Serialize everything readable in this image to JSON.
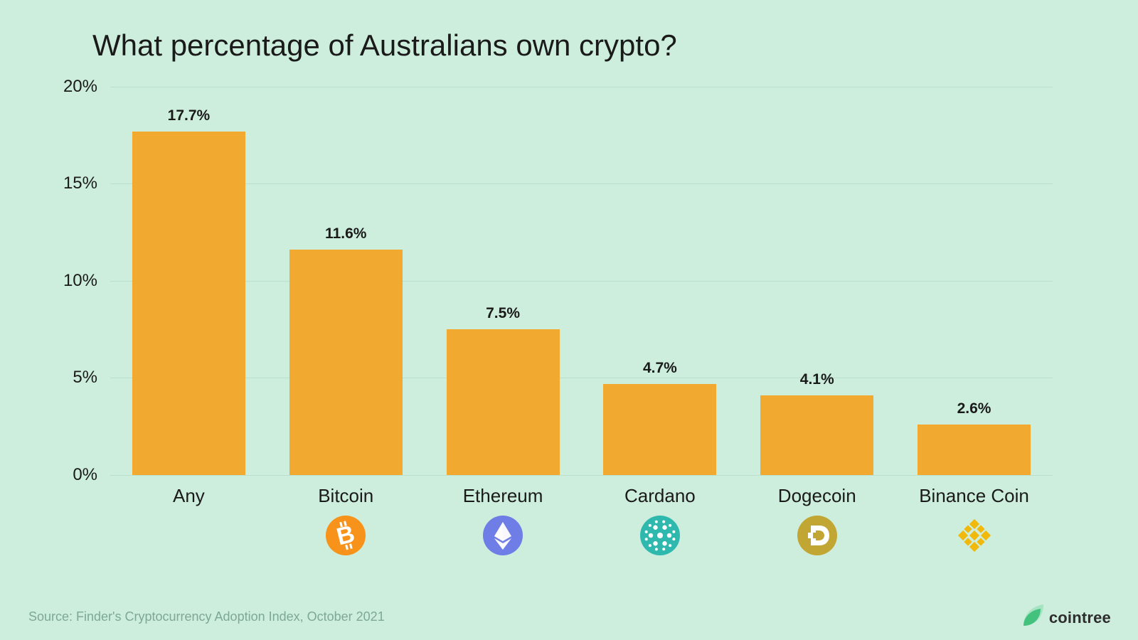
{
  "title": "What percentage of Australians own crypto?",
  "source": "Source: Finder's Cryptocurrency Adoption Index, October 2021",
  "brand": "cointree",
  "background_color": "#cdeedc",
  "grid_color": "#b9dfcd",
  "text_color": "#1a1a1a",
  "source_color": "#7da897",
  "chart": {
    "type": "bar",
    "ylim_max": 20.5,
    "yticks": [
      0,
      5,
      10,
      15,
      20
    ],
    "ytick_suffix": "%",
    "bar_color": "#f2a92f",
    "bar_width_pct": 72,
    "value_label_fontsize": 21,
    "categories": [
      {
        "name": "Any",
        "value": 17.7,
        "label": "17.7%",
        "icon": null
      },
      {
        "name": "Bitcoin",
        "value": 11.6,
        "label": "11.6%",
        "icon": "bitcoin"
      },
      {
        "name": "Ethereum",
        "value": 7.5,
        "label": "7.5%",
        "icon": "ethereum"
      },
      {
        "name": "Cardano",
        "value": 4.7,
        "label": "4.7%",
        "icon": "cardano"
      },
      {
        "name": "Dogecoin",
        "value": 4.1,
        "label": "4.1%",
        "icon": "dogecoin"
      },
      {
        "name": "Binance Coin",
        "value": 2.6,
        "label": "2.6%",
        "icon": "binance"
      }
    ]
  },
  "icons": {
    "bitcoin": {
      "bg": "#f7931a",
      "fg": "#ffffff"
    },
    "ethereum": {
      "bg": "#6f7ee6",
      "fg": "#ffffff"
    },
    "cardano": {
      "bg": "#2fb8ae",
      "fg": "#ffffff"
    },
    "dogecoin": {
      "bg": "#c2a633",
      "fg": "#ffffff"
    },
    "binance": {
      "bg": "#ffffff",
      "fg": "#f0b90b"
    }
  },
  "brand_leaf": {
    "back": "#a6e3c2",
    "front": "#42c27d"
  }
}
